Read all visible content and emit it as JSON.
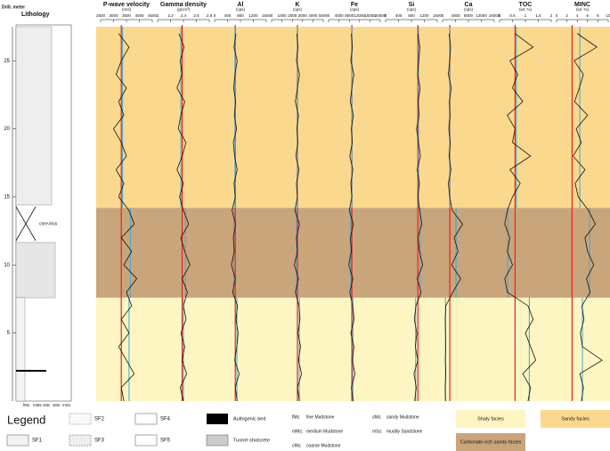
{
  "chart_data": {
    "type": "well-log",
    "y_label": "Drill. meter",
    "lithology_title": "Lithology",
    "grain_sizes": [
      "fMs",
      "mMs",
      "cMs",
      "sMs",
      "mSs"
    ],
    "core_loss": "core-loss",
    "ylim": [
      0,
      27.5
    ],
    "yticks": [
      5,
      10,
      15,
      20,
      25
    ],
    "facies": [
      {
        "name": "Shaly facies",
        "color": "#fdf6c3",
        "range": [
          0,
          7.6
        ]
      },
      {
        "name": "Carbonate-rich sandy facies",
        "color": "#c9a57c",
        "range": [
          7.6,
          14.2
        ]
      },
      {
        "name": "Sandy facies",
        "color": "#fad98f",
        "range": [
          14.2,
          27.5
        ]
      }
    ],
    "reference_color": "#e8231f",
    "facies_mean_color": "#3fa7d6",
    "line_color": "#111111",
    "depth": [
      0,
      1,
      2,
      3,
      4,
      5,
      6,
      7,
      8,
      9,
      10,
      11,
      12,
      13,
      14,
      15,
      16,
      17,
      18,
      19,
      20,
      21,
      22,
      23,
      24,
      25,
      26,
      27
    ],
    "tracks": [
      {
        "name": "P-wave velocity",
        "unit": "(m/s)",
        "xlim": [
          2500,
          4500
        ],
        "xticks": [
          2500,
          3000,
          3500,
          4000,
          4500
        ],
        "reference": 3300,
        "facies_means": [
          3600,
          3650,
          3350
        ],
        "values": [
          3400,
          3300,
          3800,
          3500,
          3200,
          3600,
          3300,
          3700,
          3500,
          3900,
          3400,
          3700,
          3300,
          3800,
          3600,
          3200,
          3400,
          3100,
          3500,
          3300,
          3000,
          3400,
          3200,
          3500,
          3100,
          3300,
          3600,
          3200
        ]
      },
      {
        "name": "Gamma density",
        "unit": "(g/cm³)",
        "xlim": [
          2,
          2.8
        ],
        "xticks": [
          2,
          2.2,
          2.4,
          2.6,
          2.8
        ],
        "reference": 2.38,
        "facies_means": [
          2.4,
          2.43,
          2.36
        ],
        "values": [
          2.4,
          2.35,
          2.45,
          2.38,
          2.42,
          2.36,
          2.44,
          2.4,
          2.46,
          2.38,
          2.5,
          2.42,
          2.36,
          2.48,
          2.4,
          2.34,
          2.4,
          2.3,
          2.38,
          2.44,
          2.32,
          2.36,
          2.42,
          2.3,
          2.38,
          2.35,
          2.41,
          2.33
        ]
      },
      {
        "name": "Al",
        "unit": "(cps)",
        "xlim": [
          0,
          1600
        ],
        "xticks": [
          0,
          400,
          800,
          1200,
          1600
        ],
        "reference": 640,
        "facies_means": [
          690,
          590,
          630
        ],
        "values": [
          700,
          640,
          760,
          620,
          690,
          730,
          660,
          710,
          560,
          640,
          520,
          610,
          580,
          650,
          540,
          640,
          600,
          700,
          620,
          580,
          680,
          610,
          650,
          590,
          630,
          700,
          600,
          660
        ]
      },
      {
        "name": "K",
        "unit": "(cps)",
        "xlim": [
          0,
          5000
        ],
        "xticks": [
          0,
          1000,
          2000,
          3000,
          4000,
          5000
        ],
        "reference": 2500,
        "facies_means": [
          2680,
          2420,
          2490
        ],
        "values": [
          2700,
          2500,
          2900,
          2600,
          2800,
          2550,
          2750,
          2650,
          2300,
          2600,
          2200,
          2500,
          2400,
          2700,
          2250,
          2500,
          2400,
          2650,
          2350,
          2550,
          2450,
          2600,
          2300,
          2500,
          2700,
          2400,
          2550,
          2450
        ]
      },
      {
        "name": "Fe",
        "unit": "(cps)",
        "xlim": [
          0,
          20000
        ],
        "xticks": [
          0,
          4000,
          8000,
          12000,
          16000,
          20000
        ],
        "reference": 9000,
        "facies_means": [
          9400,
          8600,
          9000
        ],
        "values": [
          9500,
          8800,
          10200,
          9200,
          9800,
          8600,
          9900,
          9300,
          8200,
          9400,
          7800,
          8800,
          8400,
          9600,
          8000,
          9000,
          8600,
          9400,
          8200,
          9200,
          8800,
          9600,
          8400,
          9000,
          9800,
          8600,
          9200,
          8800
        ]
      },
      {
        "name": "Si",
        "unit": "(cps)",
        "xlim": [
          0,
          1600
        ],
        "xticks": [
          0,
          400,
          800,
          1200,
          1600
        ],
        "reference": 1000,
        "facies_means": [
          930,
          1070,
          1020
        ],
        "values": [
          900,
          950,
          880,
          1000,
          920,
          970,
          890,
          940,
          1100,
          980,
          1150,
          1050,
          1000,
          1120,
          1060,
          1000,
          1050,
          980,
          1080,
          1020,
          960,
          1040,
          1010,
          1070,
          990,
          1030,
          1060,
          1000
        ]
      },
      {
        "name": "Ca",
        "unit": "(cps)",
        "xlim": [
          0,
          16000
        ],
        "xticks": [
          0,
          4000,
          8000,
          12000,
          16000
        ],
        "reference": 2240,
        "facies_means": [
          900,
          4170,
          2200
        ],
        "values": [
          900,
          800,
          1000,
          850,
          950,
          900,
          820,
          1000,
          3200,
          5600,
          2800,
          4800,
          3600,
          6200,
          3000,
          2200,
          1800,
          2600,
          2000,
          2400,
          1900,
          2300,
          2100,
          2700,
          1800,
          2200,
          2500,
          2000
        ]
      },
      {
        "name": "TOC",
        "unit": "(wt. %)",
        "xlim": [
          0,
          2
        ],
        "xticks": [
          0,
          0.5,
          1,
          1.5,
          2
        ],
        "reference": 0.6,
        "facies_means": [
          1.15,
          0.32,
          0.65
        ],
        "values": [
          1.1,
          1.2,
          0.9,
          1.4,
          1.2,
          1.0,
          1.3,
          1.1,
          0.3,
          0.2,
          0.5,
          0.3,
          0.4,
          0.2,
          0.3,
          0.5,
          0.8,
          0.4,
          1.2,
          0.5,
          0.6,
          0.3,
          0.9,
          0.5,
          0.7,
          0.4,
          1.3,
          0.6
        ]
      },
      {
        "name": "MINC",
        "unit": "(wt. %)",
        "xlim": [
          0,
          10
        ],
        "xticks": [
          0,
          2,
          4,
          6,
          8,
          10
        ],
        "reference": 3,
        "facies_means": [
          5.0,
          6.4,
          4.5
        ],
        "values": [
          4.8,
          5.2,
          4.5,
          8.8,
          5.0,
          4.6,
          5.3,
          4.9,
          6.5,
          5.8,
          7.2,
          6.0,
          5.5,
          7.5,
          6.2,
          4.2,
          3.6,
          5.5,
          3.2,
          4.8,
          3.8,
          6.0,
          3.5,
          4.4,
          5.2,
          3.4,
          7.8,
          4.0
        ]
      }
    ],
    "legend": {
      "title": "Legend",
      "units": [
        "SF1",
        "SF2",
        "SF3",
        "SF4",
        "SF5"
      ],
      "beds": [
        "Authigenic bed",
        "Tunnel shotcrete"
      ],
      "abbreviations": [
        {
          "code": "fMs:",
          "text": "fine Mudstone"
        },
        {
          "code": "mMs:",
          "text": "medium Mudstone"
        },
        {
          "code": "cMs:",
          "text": "coarse Mudstone"
        },
        {
          "code": "sMs:",
          "text": "sandy Mudstone"
        },
        {
          "code": "mSs:",
          "text": "muddy Sandstone"
        }
      ]
    }
  }
}
